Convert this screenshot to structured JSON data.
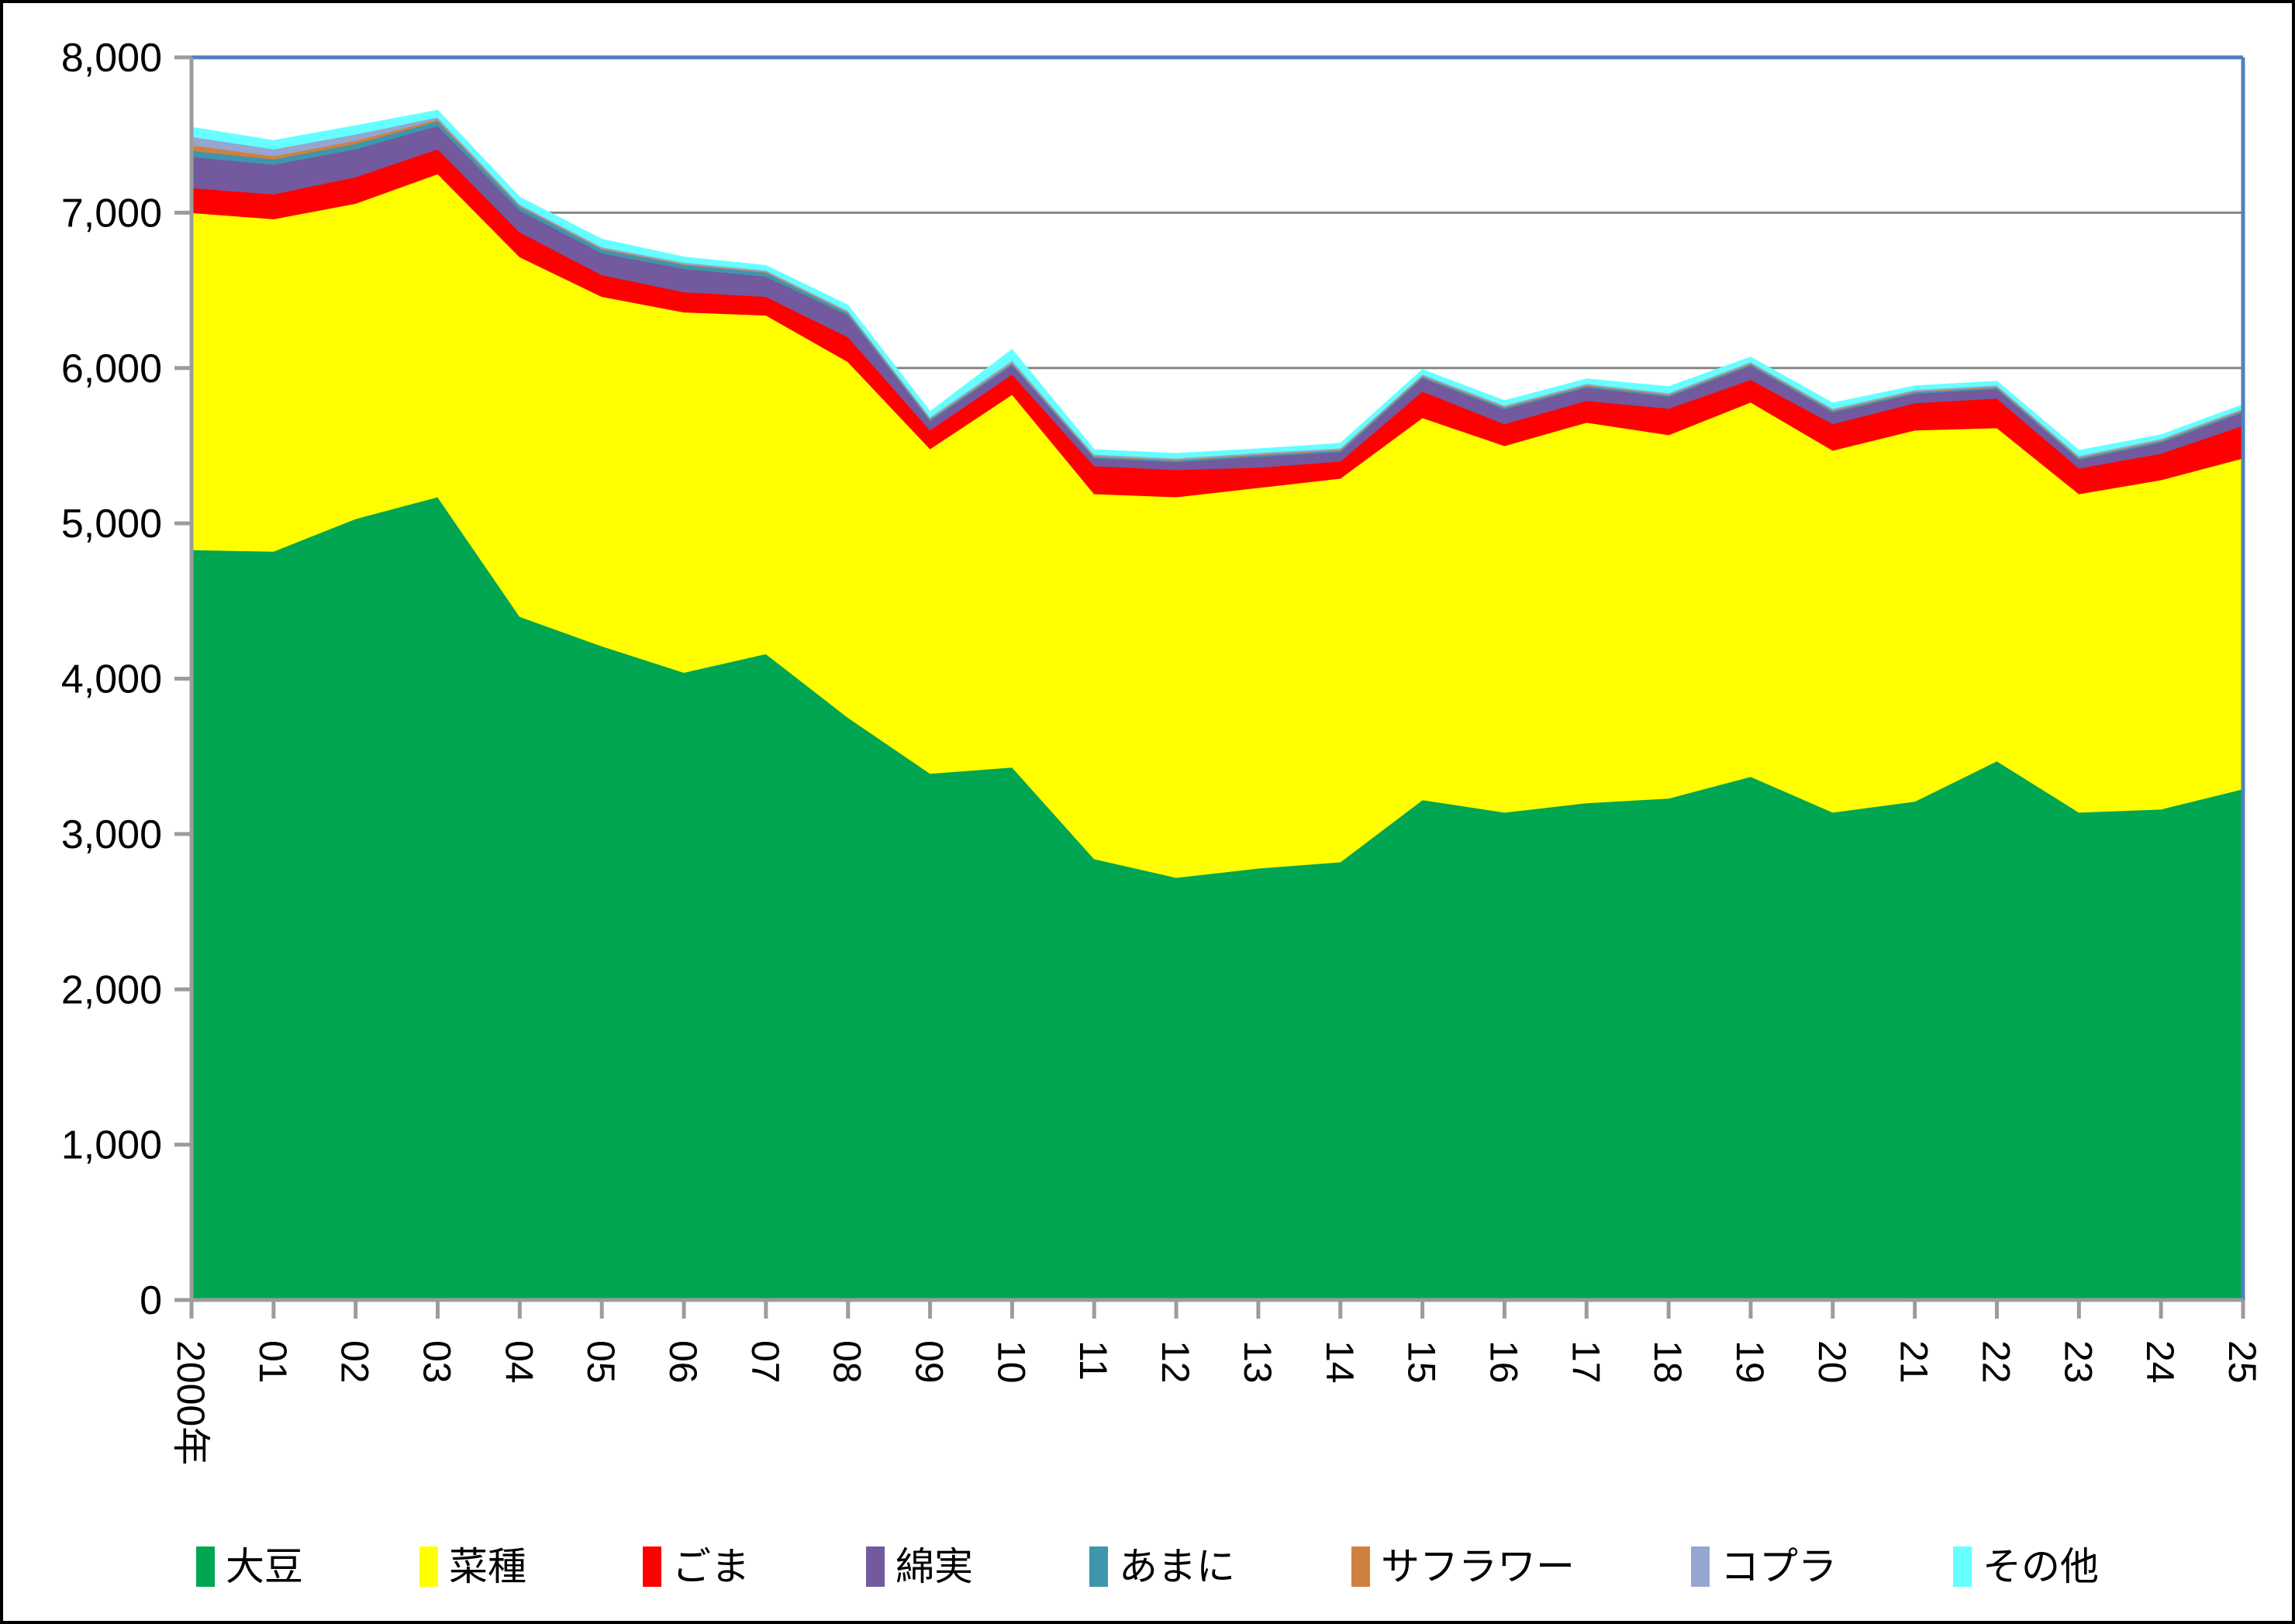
{
  "figure": {
    "background": "#FFFFFF",
    "border_color": "#000000"
  },
  "chart_data": {
    "type": "area",
    "stacked": true,
    "title": "",
    "xlabel": "",
    "ylabel": "",
    "grid": true,
    "legend_position": "bottom",
    "categories": [
      "2000年",
      "01",
      "02",
      "03",
      "04",
      "05",
      "06",
      "07",
      "08",
      "09",
      "10",
      "11",
      "12",
      "13",
      "14",
      "15",
      "16",
      "17",
      "18",
      "19",
      "20",
      "21",
      "22",
      "23",
      "24",
      "25"
    ],
    "series": [
      {
        "name": "大豆",
        "key": "soybean",
        "color": "#00A651",
        "values": [
          4830,
          4820,
          5030,
          5170,
          4400,
          4210,
          4040,
          4160,
          3750,
          3390,
          3430,
          2840,
          2720,
          2780,
          2820,
          3220,
          3140,
          3200,
          3230,
          3370,
          3140,
          3210,
          3470,
          3140,
          3160,
          3290
        ]
      },
      {
        "name": "菜種",
        "key": "rapeseed",
        "color": "#FFFF00",
        "values": [
          2170,
          2140,
          2030,
          2080,
          2315,
          2250,
          2320,
          2180,
          2290,
          2090,
          2400,
          2350,
          2450,
          2450,
          2470,
          2460,
          2360,
          2450,
          2340,
          2410,
          2330,
          2390,
          2145,
          2050,
          2120,
          2130
        ]
      },
      {
        "name": "ごま",
        "key": "sesame",
        "color": "#FF0000",
        "values": [
          160,
          160,
          170,
          160,
          160,
          140,
          130,
          120,
          160,
          120,
          130,
          180,
          175,
          130,
          110,
          170,
          140,
          140,
          170,
          145,
          170,
          175,
          190,
          165,
          170,
          210
        ]
      },
      {
        "name": "綿実",
        "key": "cottonseed",
        "color": "#73599E",
        "values": [
          200,
          190,
          180,
          150,
          140,
          140,
          150,
          130,
          140,
          60,
          60,
          50,
          50,
          70,
          60,
          85,
          95,
          85,
          75,
          90,
          75,
          60,
          60,
          55,
          70,
          85
        ]
      },
      {
        "name": "あまに",
        "key": "linseed",
        "color": "#3E96AD",
        "values": [
          40,
          35,
          35,
          30,
          25,
          25,
          25,
          25,
          15,
          10,
          10,
          10,
          10,
          10,
          10,
          10,
          10,
          10,
          10,
          10,
          10,
          10,
          10,
          10,
          10,
          10
        ]
      },
      {
        "name": "サフラワー",
        "key": "safflower",
        "color": "#D0803E",
        "values": [
          35,
          20,
          20,
          10,
          5,
          5,
          5,
          5,
          5,
          5,
          5,
          5,
          5,
          5,
          5,
          5,
          5,
          5,
          5,
          5,
          5,
          5,
          5,
          5,
          5,
          5
        ]
      },
      {
        "name": "コプラ",
        "key": "copra",
        "color": "#95A6D0",
        "values": [
          55,
          45,
          40,
          15,
          10,
          10,
          10,
          10,
          10,
          10,
          15,
          10,
          10,
          10,
          10,
          10,
          10,
          10,
          10,
          10,
          10,
          10,
          10,
          10,
          10,
          10
        ]
      },
      {
        "name": "その他",
        "key": "others",
        "color": "#66FFFF",
        "values": [
          60,
          55,
          55,
          45,
          45,
          50,
          35,
          30,
          35,
          35,
          70,
          30,
          30,
          25,
          30,
          30,
          30,
          30,
          40,
          30,
          35,
          25,
          25,
          35,
          25,
          25
        ]
      }
    ],
    "y_axis": {
      "min": 0,
      "max": 8000,
      "step": 1000,
      "tick_labels": [
        "0",
        "1,000",
        "2,000",
        "3,000",
        "4,000",
        "5,000",
        "6,000",
        "7,000",
        "8,000"
      ]
    },
    "style": {
      "gridline_color": "#878787",
      "axis_color": "#9C9C9C",
      "frame_color": "#4F81BD",
      "label_color": "#000000"
    }
  }
}
